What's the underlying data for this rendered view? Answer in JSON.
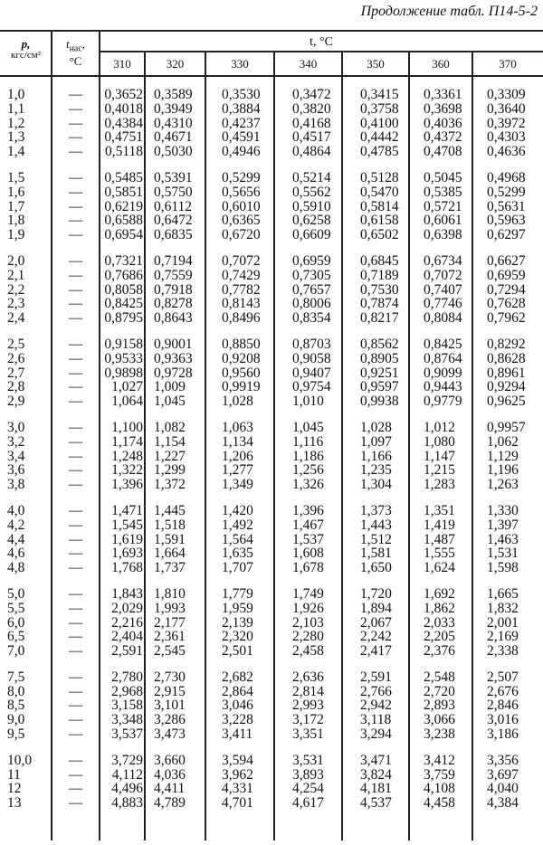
{
  "caption": "Продолжение табл. П14-5-2",
  "header": {
    "p_label": "p,",
    "p_unit": "кгс/см²",
    "tsat_label": "t",
    "tsat_sub": "нас",
    "tsat_unit": "°C",
    "t_label": "t, °C",
    "temperatures": [
      "310",
      "320",
      "330",
      "340",
      "350",
      "360",
      "370"
    ]
  },
  "groups": [
    [
      [
        "1,0",
        "—",
        "0,3652",
        "0,3589",
        "0,3530",
        "0,3472",
        "0,3415",
        "0,3361",
        "0,3309"
      ],
      [
        "1,1",
        "—",
        "0,4018",
        "0,3949",
        "0,3884",
        "0,3820",
        "0,3758",
        "0,3698",
        "0,3640"
      ],
      [
        "1,2",
        "—",
        "0,4384",
        "0,4310",
        "0,4237",
        "0,4168",
        "0,4100",
        "0,4036",
        "0,3972"
      ],
      [
        "1,3",
        "—",
        "0,4751",
        "0,4671",
        "0,4591",
        "0,4517",
        "0,4442",
        "0,4372",
        "0,4303"
      ],
      [
        "1,4",
        "—",
        "0,5118",
        "0,5030",
        "0,4946",
        "0,4864",
        "0,4785",
        "0,4708",
        "0,4636"
      ]
    ],
    [
      [
        "1,5",
        "—",
        "0,5485",
        "0,5391",
        "0,5299",
        "0,5214",
        "0,5128",
        "0,5045",
        "0,4968"
      ],
      [
        "1,6",
        "—",
        "0,5851",
        "0,5750",
        "0,5656",
        "0,5562",
        "0,5470",
        "0,5385",
        "0,5299"
      ],
      [
        "1,7",
        "—",
        "0,6219",
        "0,6112",
        "0,6010",
        "0,5910",
        "0,5814",
        "0,5721",
        "0,5631"
      ],
      [
        "1,8",
        "—",
        "0,6588",
        "0,6472",
        "0,6365",
        "0,6258",
        "0,6158",
        "0,6061",
        "0,5963"
      ],
      [
        "1,9",
        "—",
        "0,6954",
        "0,6835",
        "0,6720",
        "0,6609",
        "0,6502",
        "0,6398",
        "0,6297"
      ]
    ],
    [
      [
        "2,0",
        "—",
        "0,7321",
        "0,7194",
        "0,7072",
        "0,6959",
        "0,6845",
        "0,6734",
        "0,6627"
      ],
      [
        "2,1",
        "—",
        "0,7686",
        "0,7559",
        "0,7429",
        "0,7305",
        "0,7189",
        "0,7072",
        "0,6959"
      ],
      [
        "2,2",
        "—",
        "0,8058",
        "0,7918",
        "0,7782",
        "0,7657",
        "0,7530",
        "0,7407",
        "0,7294"
      ],
      [
        "2,3",
        "—",
        "0,8425",
        "0,8278",
        "0,8143",
        "0,8006",
        "0,7874",
        "0,7746",
        "0,7628"
      ],
      [
        "2,4",
        "—",
        "0,8795",
        "0,8643",
        "0,8496",
        "0,8354",
        "0,8217",
        "0,8084",
        "0,7962"
      ]
    ],
    [
      [
        "2,5",
        "—",
        "0,9158",
        "0,9001",
        "0,8850",
        "0,8703",
        "0,8562",
        "0,8425",
        "0,8292"
      ],
      [
        "2,6",
        "—",
        "0,9533",
        "0,9363",
        "0,9208",
        "0,9058",
        "0,8905",
        "0,8764",
        "0,8628"
      ],
      [
        "2,7",
        "—",
        "0,9898",
        "0,9728",
        "0,9560",
        "0,9407",
        "0,9251",
        "0,9099",
        "0,8961"
      ],
      [
        "2,8",
        "—",
        "1,027",
        "1,009",
        "0,9919",
        "0,9754",
        "0,9597",
        "0,9443",
        "0,9294"
      ],
      [
        "2,9",
        "—",
        "1,064",
        "1,045",
        "1,028",
        "1,010",
        "0,9938",
        "0,9779",
        "0,9625"
      ]
    ],
    [
      [
        "3,0",
        "—",
        "1,100",
        "1,082",
        "1,063",
        "1,045",
        "1,028",
        "1,012",
        "0,9957"
      ],
      [
        "3,2",
        "—",
        "1,174",
        "1,154",
        "1,134",
        "1,116",
        "1,097",
        "1,080",
        "1,062"
      ],
      [
        "3,4",
        "—",
        "1,248",
        "1,227",
        "1,206",
        "1,186",
        "1,166",
        "1,147",
        "1,129"
      ],
      [
        "3,6",
        "—",
        "1,322",
        "1,299",
        "1,277",
        "1,256",
        "1,235",
        "1,215",
        "1,196"
      ],
      [
        "3,8",
        "—",
        "1,396",
        "1,372",
        "1,349",
        "1,326",
        "1,304",
        "1,283",
        "1,263"
      ]
    ],
    [
      [
        "4,0",
        "—",
        "1,471",
        "1,445",
        "1,420",
        "1,396",
        "1,373",
        "1,351",
        "1,330"
      ],
      [
        "4,2",
        "—",
        "1,545",
        "1,518",
        "1,492",
        "1,467",
        "1,443",
        "1,419",
        "1,397"
      ],
      [
        "4,4",
        "—",
        "1,619",
        "1,591",
        "1,564",
        "1,537",
        "1,512",
        "1,487",
        "1,463"
      ],
      [
        "4,6",
        "—",
        "1,693",
        "1,664",
        "1,635",
        "1,608",
        "1,581",
        "1,555",
        "1,531"
      ],
      [
        "4,8",
        "—",
        "1,768",
        "1,737",
        "1,707",
        "1,678",
        "1,650",
        "1,624",
        "1,598"
      ]
    ],
    [
      [
        "5,0",
        "—",
        "1,843",
        "1,810",
        "1,779",
        "1,749",
        "1,720",
        "1,692",
        "1,665"
      ],
      [
        "5,5",
        "—",
        "2,029",
        "1,993",
        "1,959",
        "1,926",
        "1,894",
        "1,862",
        "1,832"
      ],
      [
        "6,0",
        "—",
        "2,216",
        "2,177",
        "2,139",
        "2,103",
        "2,067",
        "2,033",
        "2,001"
      ],
      [
        "6,5",
        "—",
        "2,404",
        "2,361",
        "2,320",
        "2,280",
        "2,242",
        "2,205",
        "2,169"
      ],
      [
        "7,0",
        "—",
        "2,591",
        "2,545",
        "2,501",
        "2,458",
        "2,417",
        "2,376",
        "2,338"
      ]
    ],
    [
      [
        "7,5",
        "—",
        "2,780",
        "2,730",
        "2,682",
        "2,636",
        "2,591",
        "2,548",
        "2,507"
      ],
      [
        "8,0",
        "—",
        "2,968",
        "2,915",
        "2,864",
        "2,814",
        "2,766",
        "2,720",
        "2,676"
      ],
      [
        "8,5",
        "—",
        "3,158",
        "3,101",
        "3,046",
        "2,993",
        "2,942",
        "2,893",
        "2,846"
      ],
      [
        "9,0",
        "—",
        "3,348",
        "3,286",
        "3,228",
        "3,172",
        "3,118",
        "3,066",
        "3,016"
      ],
      [
        "9,5",
        "—",
        "3,537",
        "3,473",
        "3,411",
        "3,351",
        "3,294",
        "3,238",
        "3,186"
      ]
    ],
    [
      [
        "10,0",
        "—",
        "3,729",
        "3,660",
        "3,594",
        "3,531",
        "3,471",
        "3,412",
        "3,356"
      ],
      [
        "11",
        "—",
        "4,112",
        "4,036",
        "3,962",
        "3,893",
        "3,824",
        "3,759",
        "3,697"
      ],
      [
        "12",
        "—",
        "4,496",
        "4,411",
        "4,331",
        "4,254",
        "4,181",
        "4,108",
        "4,040"
      ],
      [
        "13",
        "—",
        "4,883",
        "4,789",
        "4,701",
        "4,617",
        "4,537",
        "4,458",
        "4,384"
      ]
    ]
  ]
}
